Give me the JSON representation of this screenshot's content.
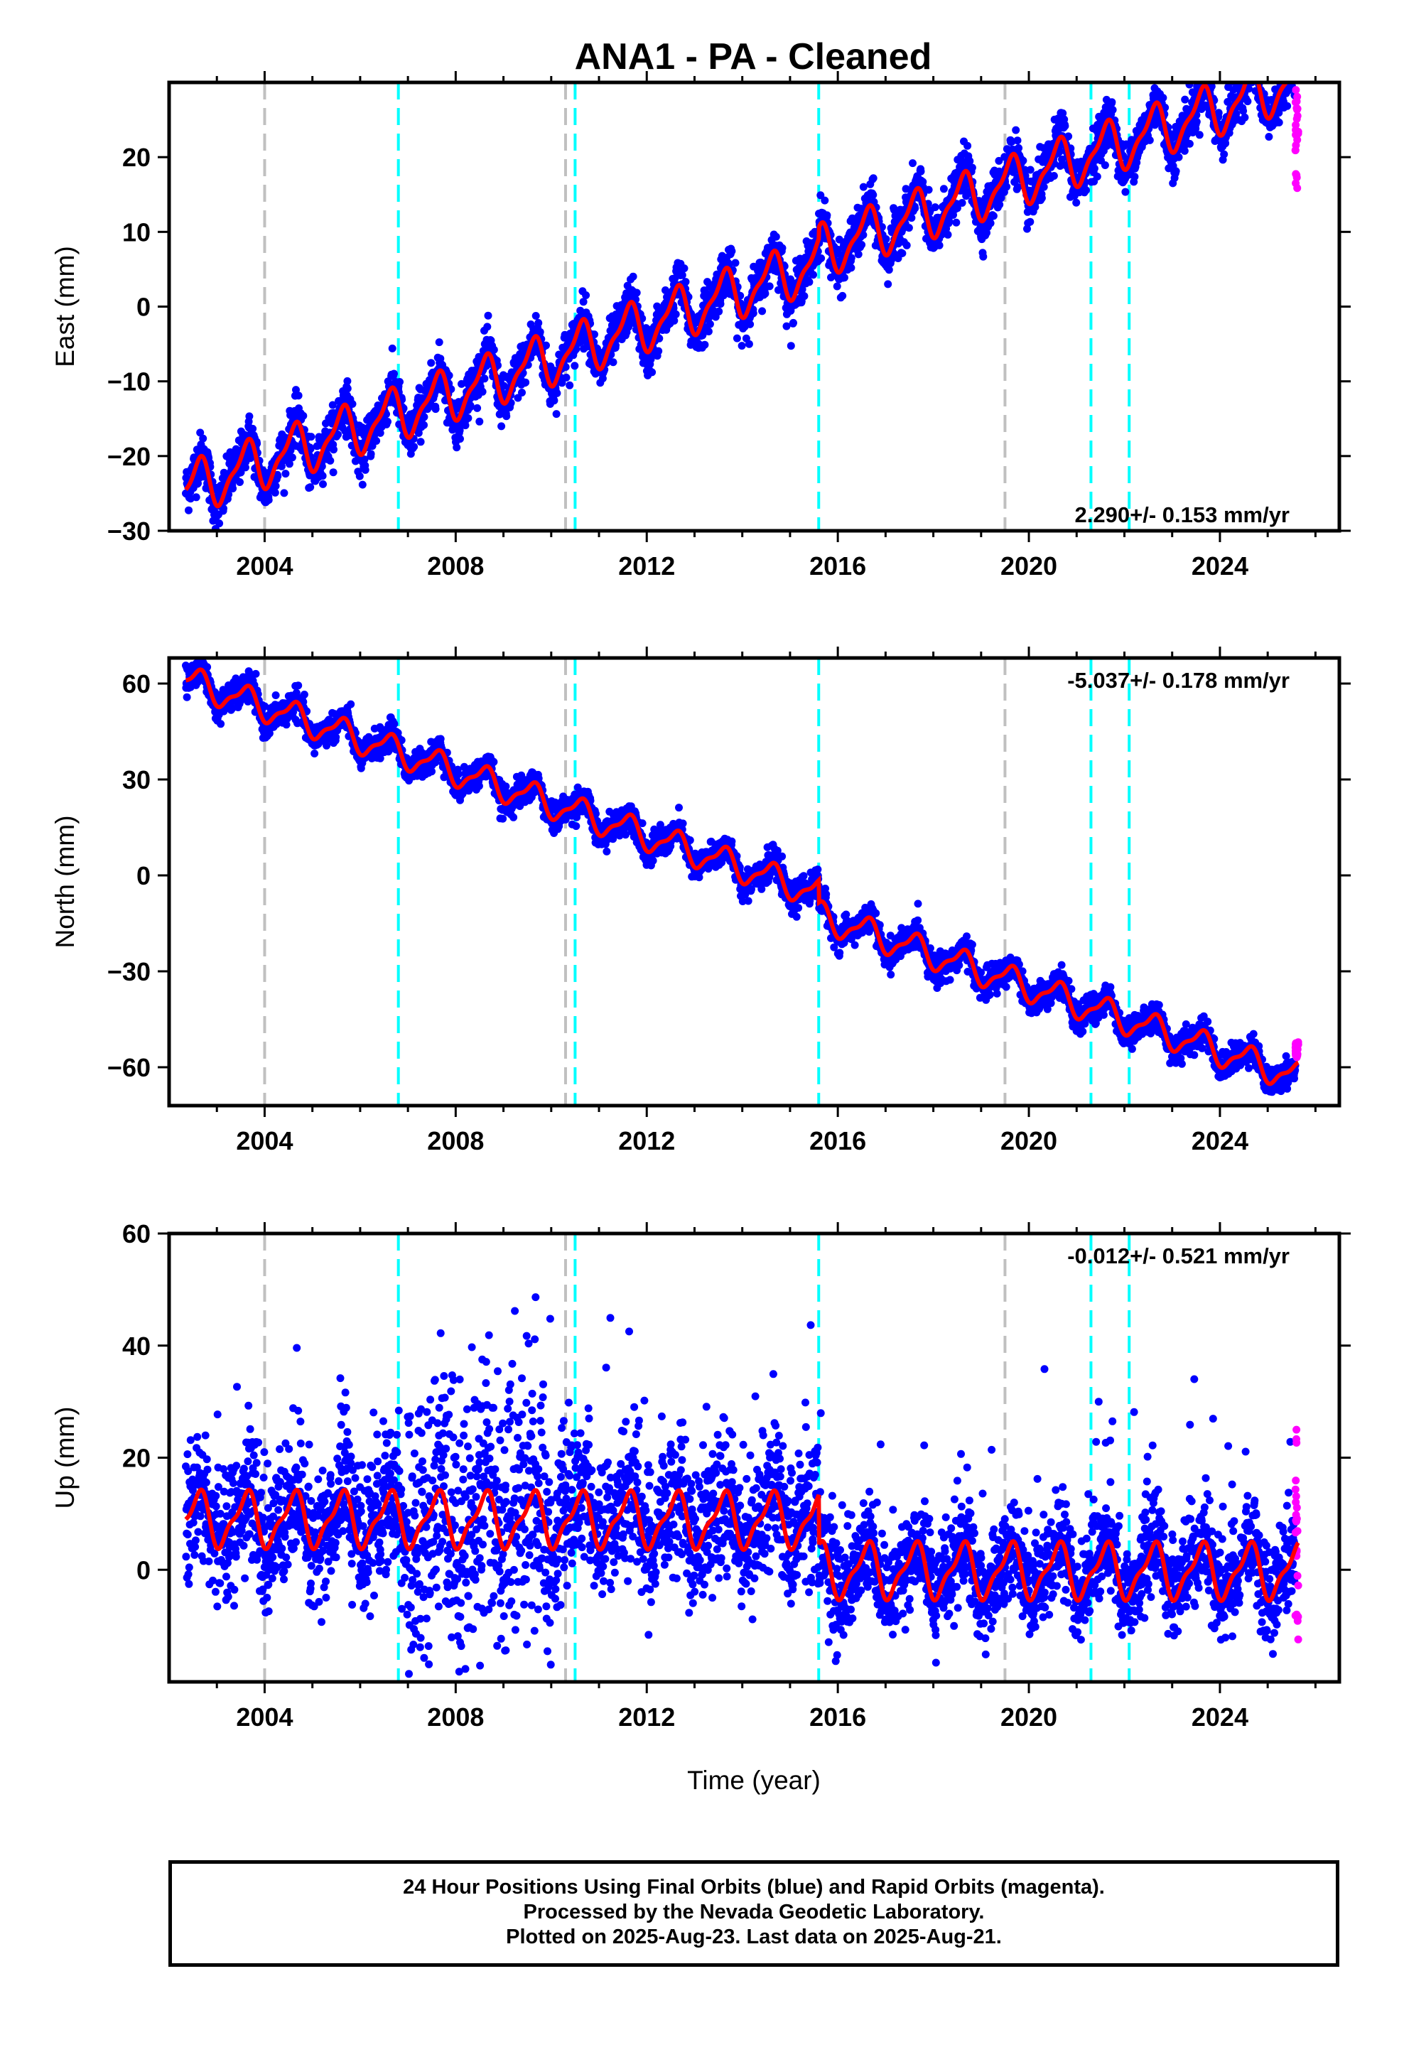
{
  "title": "ANA1  - PA - Cleaned",
  "x_label": "Time (year)",
  "footer": {
    "line1": "24 Hour Positions Using Final Orbits (blue) and Rapid Orbits (magenta).",
    "line2": "Processed by the Nevada Geodetic Laboratory.",
    "line3": "Plotted on 2025-Aug-23. Last data on 2025-Aug-21."
  },
  "colors": {
    "final_orbits": "#0000ff",
    "rapid_orbits": "#ff00ff",
    "model_fit": "#ff0000",
    "equipment_change": "#00ffff",
    "earthquake_or_other": "#c0c0c0"
  },
  "chart_data": [
    {
      "type": "scatter",
      "component": "east",
      "ylabel": "East (mm)",
      "xlim": [
        2002.0,
        2026.5
      ],
      "ylim": [
        -30,
        30
      ],
      "x_ticks": [
        2004,
        2008,
        2012,
        2016,
        2020,
        2024
      ],
      "y_ticks": [
        -30,
        -20,
        -10,
        0,
        10,
        20
      ],
      "velocity_label": "2.290+/- 0.153 mm/yr",
      "velocity_mm_yr": 2.29,
      "label_position": "bottom-right",
      "start_year": 2002.35,
      "end_year": 2025.64,
      "start_value": -24.5,
      "seasonal_amplitude": 3.2,
      "scatter": 1.6,
      "rapid_range": [
        15,
        29
      ],
      "offsets": [
        {
          "year": 2015.6,
          "value": 1.5
        }
      ],
      "series": [
        {
          "name": "Final Orbits (blue)"
        },
        {
          "name": "Rapid Orbits (magenta)"
        },
        {
          "name": "Model fit"
        }
      ]
    },
    {
      "type": "scatter",
      "component": "north",
      "ylabel": "North (mm)",
      "xlim": [
        2002.0,
        2026.5
      ],
      "ylim": [
        -72,
        68
      ],
      "x_ticks": [
        2004,
        2008,
        2012,
        2016,
        2020,
        2024
      ],
      "y_ticks": [
        -60,
        -30,
        0,
        30,
        60
      ],
      "velocity_label": "-5.037+/- 0.178 mm/yr",
      "velocity_mm_yr": -5.037,
      "label_position": "top-right",
      "start_year": 2002.35,
      "end_year": 2025.64,
      "start_value": 61,
      "seasonal_amplitude": 4.2,
      "scatter": 2.2,
      "rapid_range": [
        -57,
        -52
      ],
      "offsets": [
        {
          "year": 2015.6,
          "value": -7
        }
      ],
      "series": [
        {
          "name": "Final Orbits (blue)"
        },
        {
          "name": "Rapid Orbits (magenta)"
        },
        {
          "name": "Model fit"
        }
      ]
    },
    {
      "type": "scatter",
      "component": "up",
      "ylabel": "Up (mm)",
      "xlim": [
        2002.0,
        2026.5
      ],
      "ylim": [
        -20,
        60
      ],
      "x_ticks": [
        2004,
        2008,
        2012,
        2016,
        2020,
        2024
      ],
      "y_ticks": [
        0,
        20,
        40,
        60
      ],
      "velocity_label": "-0.012+/- 0.521 mm/yr",
      "velocity_mm_yr": -0.012,
      "label_position": "top-right",
      "start_year": 2002.35,
      "end_year": 2025.64,
      "start_value": 9,
      "seasonal_amplitude": 4.5,
      "scatter": 6,
      "rapid_range": [
        -14,
        25
      ],
      "offsets": [
        {
          "year": 2015.6,
          "value": -9
        }
      ],
      "series": [
        {
          "name": "Final Orbits (blue)"
        },
        {
          "name": "Rapid Orbits (magenta)"
        },
        {
          "name": "Model fit"
        }
      ]
    }
  ],
  "event_lines": [
    {
      "year": 2004.0,
      "kind": "earthquake_or_other"
    },
    {
      "year": 2006.8,
      "kind": "equipment_change"
    },
    {
      "year": 2010.3,
      "kind": "earthquake_or_other"
    },
    {
      "year": 2010.5,
      "kind": "equipment_change"
    },
    {
      "year": 2015.6,
      "kind": "equipment_change"
    },
    {
      "year": 2019.5,
      "kind": "earthquake_or_other"
    },
    {
      "year": 2021.3,
      "kind": "equipment_change"
    },
    {
      "year": 2022.1,
      "kind": "equipment_change"
    }
  ]
}
